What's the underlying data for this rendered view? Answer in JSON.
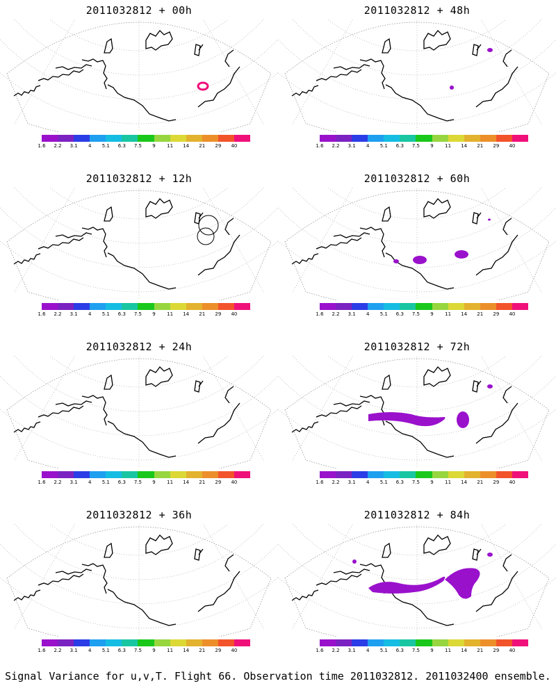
{
  "colors": [
    "#9a11cc",
    "#7b22c2",
    "#2b3de6",
    "#1f9ff0",
    "#16bde3",
    "#19c6a2",
    "#1ac81b",
    "#97d63f",
    "#dcd836",
    "#e3b22e",
    "#ec8f2a",
    "#f2532b",
    "#f0107a"
  ],
  "tick_labels": [
    "1.6",
    "2.2",
    "3.1",
    "4",
    "5.1",
    "6.3",
    "7.5",
    "9",
    "11",
    "14",
    "21",
    "29",
    "40"
  ],
  "panels": [
    {
      "id": "p00",
      "title": "2011032812 + 00h",
      "signal": [
        "ring-great-lakes"
      ]
    },
    {
      "id": "p48",
      "title": "2011032812 + 48h",
      "signal": [
        "blob-baffin",
        "blob-canada-small"
      ]
    },
    {
      "id": "p12",
      "title": "2011032812 + 12h",
      "signal": [
        "circles-great-lakes"
      ]
    },
    {
      "id": "p60",
      "title": "2011032812 + 60h",
      "signal": [
        "blob-pacific-mid",
        "blob-great-plains",
        "blob-baffin-tiny"
      ]
    },
    {
      "id": "p24",
      "title": "2011032812 + 24h",
      "signal": []
    },
    {
      "id": "p72",
      "title": "2011032812 + 72h",
      "signal": [
        "band-pacific",
        "blob-central-us",
        "blob-baffin"
      ]
    },
    {
      "id": "p36",
      "title": "2011032812 + 36h",
      "signal": []
    },
    {
      "id": "p84",
      "title": "2011032812 + 84h",
      "signal": [
        "band-pacific-wide",
        "blob-great-lakes-large",
        "blob-canada-left",
        "blob-baffin"
      ]
    }
  ],
  "footer": "Signal Variance for u,v,T. Flight 66. Observation time 2011032812. 2011032400 ensemble."
}
